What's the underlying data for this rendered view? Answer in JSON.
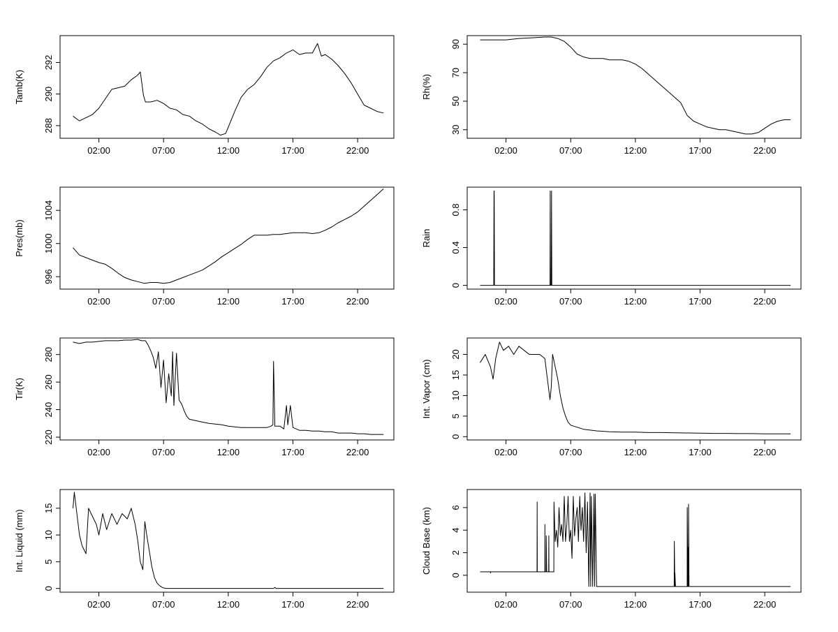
{
  "figure": {
    "time_ticks": [
      "02:00",
      "07:00",
      "12:00",
      "17:00",
      "22:00"
    ],
    "time_tick_hours": [
      2,
      7,
      12,
      17,
      22
    ],
    "xlim_hours": [
      -1,
      24.8
    ]
  },
  "chart_data": [
    {
      "type": "line",
      "ylabel": "Tamb(K)",
      "xlabel": "",
      "ylim": [
        287.2,
        293.7
      ],
      "yticks": [
        288,
        290,
        292
      ],
      "x": [
        0,
        0.5,
        1,
        1.5,
        2,
        2.5,
        3,
        3.5,
        4,
        4.5,
        5,
        5.2,
        5.45,
        5.6,
        6,
        6.5,
        7,
        7.5,
        8,
        8.5,
        9,
        9.5,
        10,
        10.5,
        11,
        11.4,
        11.8,
        12,
        12.5,
        13,
        13.5,
        14,
        14.5,
        15,
        15.5,
        16,
        16.5,
        17,
        17.5,
        18,
        18.5,
        18.9,
        19.2,
        19.5,
        20,
        20.5,
        21,
        21.5,
        22,
        22.5,
        23,
        23.5,
        24
      ],
      "series": [
        {
          "values": [
            288.6,
            288.3,
            288.5,
            288.7,
            289.1,
            289.7,
            290.3,
            290.4,
            290.5,
            290.9,
            291.2,
            291.4,
            289.9,
            289.5,
            289.5,
            289.6,
            289.4,
            289.1,
            289.0,
            288.7,
            288.6,
            288.3,
            288.1,
            287.8,
            287.6,
            287.4,
            287.5,
            287.9,
            288.9,
            289.8,
            290.3,
            290.6,
            291.1,
            291.7,
            292.1,
            292.3,
            292.6,
            292.8,
            292.5,
            292.6,
            292.6,
            293.2,
            292.4,
            292.5,
            292.2,
            291.8,
            291.3,
            290.7,
            290.0,
            289.3,
            289.1,
            288.9,
            288.8
          ]
        }
      ]
    },
    {
      "type": "line",
      "ylabel": "Rh(%)",
      "xlabel": "",
      "ylim": [
        24,
        96
      ],
      "yticks": [
        30,
        50,
        70,
        90
      ],
      "x": [
        0,
        1,
        2,
        3,
        4,
        5,
        5.5,
        6,
        6.5,
        7,
        7.5,
        8,
        8.5,
        9,
        9.5,
        10,
        10.5,
        11,
        11.5,
        12,
        12.5,
        13,
        13.5,
        14,
        14.5,
        15,
        15.5,
        16,
        16.5,
        17,
        17.5,
        18,
        18.5,
        19,
        19.5,
        20,
        20.5,
        21,
        21.5,
        22,
        22.5,
        23,
        23.5,
        24
      ],
      "series": [
        {
          "values": [
            93,
            93,
            93,
            94,
            94.5,
            95,
            95,
            94,
            92,
            88,
            83,
            81,
            80,
            80,
            80,
            79,
            79,
            79,
            78,
            76,
            73,
            69,
            65,
            61,
            57,
            53,
            49,
            40,
            36,
            34,
            32,
            31,
            30,
            30,
            29,
            28,
            27,
            27,
            28,
            31,
            34,
            36,
            37,
            37
          ]
        }
      ]
    },
    {
      "type": "line",
      "ylabel": "Pres(mb)",
      "xlabel": "",
      "ylim": [
        994.5,
        1006.8
      ],
      "yticks": [
        996,
        1000,
        1004
      ],
      "x": [
        0,
        0.5,
        1,
        1.5,
        2,
        2.5,
        3,
        3.5,
        4,
        4.5,
        5,
        5.5,
        6,
        6.5,
        7,
        7.5,
        8,
        8.5,
        9,
        9.5,
        10,
        10.5,
        11,
        11.5,
        12,
        12.5,
        13,
        13.5,
        14,
        14.5,
        15,
        15.5,
        16,
        16.5,
        17,
        17.5,
        18,
        18.5,
        19,
        19.5,
        20,
        20.5,
        21,
        21.5,
        22,
        22.5,
        23,
        23.5,
        24
      ],
      "series": [
        {
          "values": [
            999.5,
            998.6,
            998.3,
            998.0,
            997.7,
            997.5,
            997.0,
            996.4,
            995.9,
            995.6,
            995.4,
            995.2,
            995.3,
            995.3,
            995.2,
            995.3,
            995.6,
            995.9,
            996.2,
            996.5,
            996.8,
            997.3,
            997.8,
            998.4,
            998.9,
            999.4,
            999.9,
            1000.5,
            1001.0,
            1001.0,
            1001.0,
            1001.1,
            1001.1,
            1001.2,
            1001.3,
            1001.3,
            1001.3,
            1001.2,
            1001.3,
            1001.6,
            1002.0,
            1002.5,
            1002.9,
            1003.3,
            1003.8,
            1004.5,
            1005.2,
            1005.9,
            1006.6
          ]
        }
      ]
    },
    {
      "type": "line",
      "ylabel": "Rain",
      "xlabel": "",
      "ylim": [
        -0.04,
        1.04
      ],
      "yticks": [
        0.0,
        0.4,
        0.8
      ],
      "x": [
        0,
        1.05,
        1.07,
        1.09,
        1.11,
        5.4,
        5.42,
        5.44,
        5.5,
        5.52,
        5.54,
        24
      ],
      "series": [
        {
          "values": [
            0,
            0,
            1,
            1,
            0,
            0,
            1,
            0,
            0,
            1,
            0,
            0
          ]
        }
      ]
    },
    {
      "type": "line",
      "ylabel": "Tir(K)",
      "xlabel": "",
      "ylim": [
        218,
        292
      ],
      "yticks": [
        220,
        240,
        260,
        280
      ],
      "x": [
        0,
        0.5,
        1,
        1.5,
        2,
        2.5,
        3,
        3.5,
        4,
        4.5,
        5,
        5.3,
        5.6,
        5.8,
        6,
        6.2,
        6.4,
        6.6,
        6.8,
        7,
        7.2,
        7.4,
        7.6,
        7.7,
        7.8,
        8,
        8.2,
        8.4,
        8.6,
        8.8,
        9,
        9.5,
        10,
        10.5,
        11,
        11.5,
        12,
        12.5,
        13,
        13.5,
        14,
        14.5,
        15,
        15.3,
        15.45,
        15.5,
        15.6,
        16,
        16.3,
        16.5,
        16.6,
        16.8,
        17,
        17.5,
        18,
        18.5,
        19,
        19.5,
        20,
        20.5,
        21,
        21.5,
        22,
        22.5,
        23,
        23.5,
        24
      ],
      "series": [
        {
          "values": [
            289,
            288,
            289,
            289,
            289.5,
            290,
            290,
            290,
            290.5,
            290.5,
            291,
            290,
            290,
            287,
            283,
            278,
            270,
            282,
            256,
            276,
            245,
            266,
            250,
            282,
            243,
            281,
            247,
            244,
            239,
            235,
            233,
            232,
            231,
            230,
            229.5,
            229,
            228,
            227.5,
            227,
            227,
            227,
            227,
            227,
            228,
            229,
            275,
            228,
            228,
            226,
            243,
            229,
            243,
            227,
            225,
            225,
            224.5,
            224.5,
            224,
            224,
            223,
            223,
            223,
            222.5,
            222.5,
            222,
            222,
            222
          ]
        }
      ]
    },
    {
      "type": "line",
      "ylabel": "Int. Vapor (cm)",
      "xlabel": "",
      "ylim": [
        -0.8,
        24
      ],
      "yticks": [
        0,
        5,
        10,
        15,
        20
      ],
      "x": [
        0,
        0.4,
        0.8,
        1.0,
        1.2,
        1.5,
        1.8,
        2.2,
        2.6,
        3,
        3.4,
        3.8,
        4.2,
        4.6,
        5,
        5.2,
        5.4,
        5.5,
        5.6,
        5.8,
        6.0,
        6.2,
        6.4,
        6.6,
        6.8,
        7,
        7.5,
        8,
        8.5,
        9,
        10,
        11,
        12,
        13,
        14,
        15,
        16,
        17,
        18,
        19,
        20,
        21,
        22,
        23,
        24
      ],
      "series": [
        {
          "values": [
            18,
            20,
            17,
            14,
            19,
            23,
            21,
            22,
            20,
            22,
            21,
            20,
            20,
            20,
            19,
            14,
            9,
            12,
            20,
            17,
            14,
            10,
            7,
            5,
            3.5,
            2.8,
            2.3,
            1.8,
            1.6,
            1.4,
            1.2,
            1.1,
            1.1,
            1.0,
            1.0,
            0.95,
            0.9,
            0.85,
            0.8,
            0.8,
            0.75,
            0.75,
            0.7,
            0.7,
            0.7
          ]
        }
      ]
    },
    {
      "type": "line",
      "ylabel": "Int. Liquid (mm)",
      "xlabel": "",
      "ylim": [
        -0.7,
        18.5
      ],
      "yticks": [
        0,
        5,
        10,
        15
      ],
      "x": [
        0,
        0.1,
        0.3,
        0.5,
        0.7,
        0.9,
        1.0,
        1.2,
        1.4,
        1.6,
        1.8,
        2.0,
        2.3,
        2.6,
        3.0,
        3.4,
        3.8,
        4.2,
        4.5,
        4.8,
        5.0,
        5.2,
        5.4,
        5.55,
        5.7,
        5.9,
        6.1,
        6.3,
        6.5,
        6.7,
        6.9,
        7.0,
        7.2,
        8,
        10,
        12,
        14,
        15.5,
        15.6,
        15.7,
        17,
        19,
        21,
        24
      ],
      "series": [
        {
          "values": [
            15,
            18,
            14,
            10,
            8,
            7,
            6.5,
            15,
            14,
            13,
            12,
            10,
            14,
            11,
            14,
            12,
            14,
            13,
            15,
            12,
            9,
            5,
            3.5,
            12.5,
            10,
            7,
            4,
            2,
            1,
            0.5,
            0.2,
            0.1,
            0,
            0,
            0,
            0,
            0,
            0,
            0.2,
            0,
            0,
            0,
            0,
            0
          ]
        }
      ]
    },
    {
      "type": "line",
      "ylabel": "Cloud Base (km)",
      "xlabel": "",
      "ylim": [
        -1.5,
        7.6
      ],
      "yticks": [
        0,
        2,
        4,
        6
      ],
      "x": [
        0,
        0.8,
        0.81,
        0.82,
        2,
        4.4,
        4.41,
        4.42,
        4.5,
        5.0,
        5.01,
        5.02,
        5.1,
        5.11,
        5.15,
        5.3,
        5.31,
        5.32,
        5.5,
        5.7,
        5.71,
        5.8,
        5.9,
        6.0,
        6.1,
        6.2,
        6.3,
        6.4,
        6.5,
        6.6,
        6.7,
        6.8,
        6.9,
        7.0,
        7.1,
        7.2,
        7.3,
        7.4,
        7.5,
        7.6,
        7.7,
        7.8,
        7.9,
        8.0,
        8.1,
        8.2,
        8.3,
        8.4,
        8.5,
        8.55,
        8.6,
        8.7,
        8.8,
        8.85,
        8.9,
        9.0,
        9.1,
        9.2,
        12,
        15.0,
        15.01,
        15.05,
        15.06,
        15.1,
        16.0,
        16.01,
        16.05,
        16.06,
        16.1,
        16.11,
        16.15,
        16.16,
        24
      ],
      "series": [
        {
          "values": [
            0.3,
            0.3,
            0.2,
            0.3,
            0.3,
            0.3,
            6.5,
            0.3,
            0.3,
            0.3,
            4.5,
            0.3,
            0.3,
            3.5,
            0.3,
            0.3,
            3.5,
            0.3,
            0.3,
            0.3,
            6.5,
            3,
            4,
            2.5,
            6,
            3.5,
            4.5,
            3,
            7,
            3,
            4.5,
            7,
            3,
            4,
            1.5,
            7,
            3.5,
            5,
            6,
            3,
            7,
            4,
            6,
            3,
            7.3,
            2,
            6.5,
            -1,
            7.3,
            -1,
            7,
            -1,
            7.2,
            -1,
            7.2,
            -1,
            -1,
            -1,
            -1,
            -1,
            3,
            -1,
            0.2,
            -1,
            -1,
            6,
            -1,
            2.5,
            -1,
            6.3,
            -1,
            -1,
            -1
          ]
        }
      ]
    }
  ]
}
